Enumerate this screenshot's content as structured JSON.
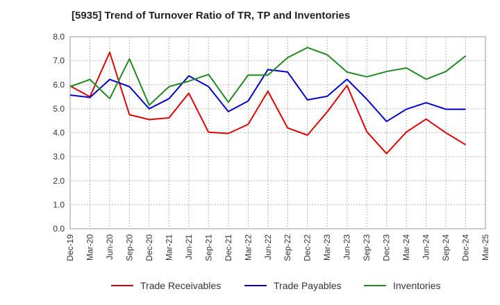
{
  "chart_data": {
    "type": "line",
    "title": "[5935]  Trend of Turnover Ratio of TR, TP and Inventories",
    "categories": [
      "Dec-19",
      "Mar-20",
      "Jun-20",
      "Sep-20",
      "Dec-20",
      "Mar-21",
      "Jun-21",
      "Sep-21",
      "Dec-21",
      "Mar-22",
      "Jun-22",
      "Sep-22",
      "Dec-22",
      "Mar-23",
      "Jun-23",
      "Sep-23",
      "Dec-23",
      "Mar-24",
      "Jun-24",
      "Sep-24",
      "Dec-24",
      "Mar-25"
    ],
    "ylim": [
      0,
      8
    ],
    "yticks": [
      "0.0",
      "1.0",
      "2.0",
      "3.0",
      "4.0",
      "5.0",
      "6.0",
      "7.0",
      "8.0"
    ],
    "grid": true,
    "legend_position": "bottom",
    "series": [
      {
        "name": "Trade Receivables",
        "color": "#dd0000",
        "values": [
          5.95,
          5.5,
          7.35,
          4.75,
          4.55,
          4.62,
          5.65,
          4.02,
          3.97,
          4.35,
          5.73,
          4.2,
          3.9,
          4.87,
          5.97,
          4.05,
          3.13,
          4.03,
          4.57,
          4.0,
          3.5,
          null
        ]
      },
      {
        "name": "Trade Payables",
        "color": "#0000cc",
        "values": [
          5.57,
          5.47,
          6.22,
          5.92,
          5.0,
          5.42,
          6.37,
          5.92,
          4.88,
          5.32,
          6.63,
          6.53,
          5.37,
          5.52,
          6.23,
          5.4,
          4.47,
          4.98,
          5.25,
          4.98,
          4.98,
          null
        ]
      },
      {
        "name": "Inventories",
        "color": "#228822",
        "values": [
          5.92,
          6.22,
          5.42,
          7.08,
          5.15,
          5.92,
          6.15,
          6.43,
          5.27,
          6.4,
          6.4,
          7.13,
          7.55,
          7.25,
          6.53,
          6.33,
          6.55,
          6.7,
          6.23,
          6.55,
          7.2,
          null
        ]
      }
    ]
  }
}
